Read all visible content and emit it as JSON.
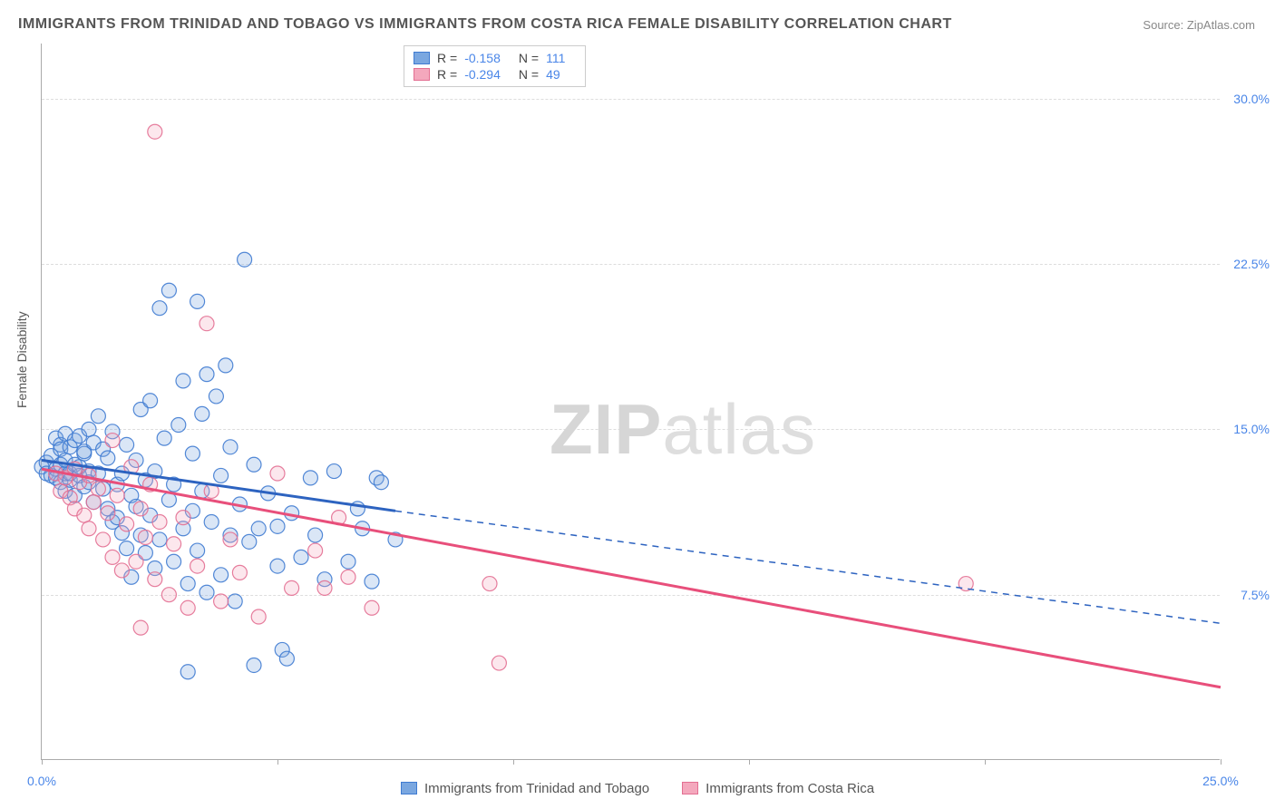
{
  "title": "IMMIGRANTS FROM TRINIDAD AND TOBAGO VS IMMIGRANTS FROM COSTA RICA FEMALE DISABILITY CORRELATION CHART",
  "source": {
    "label": "Source:",
    "site": "ZipAtlas.com"
  },
  "ylabel": "Female Disability",
  "watermark": {
    "part1": "ZIP",
    "part2": "atlas"
  },
  "chart": {
    "type": "scatter",
    "xrange": [
      0,
      25
    ],
    "yrange": [
      0,
      32.5
    ],
    "yticks": [
      {
        "v": 7.5,
        "label": "7.5%"
      },
      {
        "v": 15.0,
        "label": "15.0%"
      },
      {
        "v": 22.5,
        "label": "22.5%"
      },
      {
        "v": 30.0,
        "label": "30.0%"
      }
    ],
    "xticks": [
      {
        "v": 0,
        "label": "0.0%"
      },
      {
        "v": 5,
        "label": null
      },
      {
        "v": 10,
        "label": null
      },
      {
        "v": 15,
        "label": null
      },
      {
        "v": 20,
        "label": null
      },
      {
        "v": 25,
        "label": "25.0%"
      }
    ],
    "grid_color": "#dddddd",
    "axis_color": "#aaaaaa",
    "background": "#ffffff",
    "point_radius": 8,
    "series": [
      {
        "key": "trinidad",
        "name": "Immigrants from Trinidad and Tobago",
        "color_fill": "#7aa7e0",
        "color_stroke": "#3f7bd1",
        "R": "-0.158",
        "N": "111",
        "trend": {
          "solid": {
            "x1": 0,
            "y1": 13.6,
            "x2": 7.5,
            "y2": 11.3
          },
          "dashed": {
            "x1": 7.5,
            "y1": 11.3,
            "x2": 25,
            "y2": 6.2
          },
          "stroke": "#2d63c0",
          "width": 3
        },
        "points": [
          [
            0.0,
            13.3
          ],
          [
            0.1,
            13.5
          ],
          [
            0.1,
            13.0
          ],
          [
            0.2,
            12.9
          ],
          [
            0.2,
            13.8
          ],
          [
            0.3,
            13.2
          ],
          [
            0.3,
            12.8
          ],
          [
            0.3,
            14.6
          ],
          [
            0.4,
            14.3
          ],
          [
            0.4,
            13.4
          ],
          [
            0.4,
            12.6
          ],
          [
            0.4,
            14.1
          ],
          [
            0.5,
            13.0
          ],
          [
            0.5,
            14.8
          ],
          [
            0.5,
            12.2
          ],
          [
            0.5,
            13.6
          ],
          [
            0.6,
            12.7
          ],
          [
            0.6,
            14.2
          ],
          [
            0.6,
            13.0
          ],
          [
            0.7,
            13.4
          ],
          [
            0.7,
            14.5
          ],
          [
            0.7,
            12.0
          ],
          [
            0.8,
            12.9
          ],
          [
            0.8,
            14.7
          ],
          [
            0.8,
            13.3
          ],
          [
            0.9,
            13.9
          ],
          [
            0.9,
            12.4
          ],
          [
            0.9,
            14.0
          ],
          [
            1.0,
            13.1
          ],
          [
            1.0,
            15.0
          ],
          [
            1.0,
            12.6
          ],
          [
            1.1,
            14.4
          ],
          [
            1.1,
            11.7
          ],
          [
            1.2,
            13.0
          ],
          [
            1.2,
            15.6
          ],
          [
            1.3,
            12.3
          ],
          [
            1.3,
            14.1
          ],
          [
            1.4,
            11.4
          ],
          [
            1.4,
            13.7
          ],
          [
            1.5,
            10.8
          ],
          [
            1.5,
            14.9
          ],
          [
            1.6,
            11.0
          ],
          [
            1.6,
            12.5
          ],
          [
            1.7,
            10.3
          ],
          [
            1.7,
            13.0
          ],
          [
            1.8,
            14.3
          ],
          [
            1.8,
            9.6
          ],
          [
            1.9,
            12.0
          ],
          [
            1.9,
            8.3
          ],
          [
            2.0,
            11.5
          ],
          [
            2.0,
            13.6
          ],
          [
            2.1,
            10.2
          ],
          [
            2.1,
            15.9
          ],
          [
            2.2,
            9.4
          ],
          [
            2.2,
            12.7
          ],
          [
            2.3,
            11.1
          ],
          [
            2.3,
            16.3
          ],
          [
            2.4,
            8.7
          ],
          [
            2.4,
            13.1
          ],
          [
            2.5,
            20.5
          ],
          [
            2.5,
            10.0
          ],
          [
            2.6,
            14.6
          ],
          [
            2.7,
            11.8
          ],
          [
            2.7,
            21.3
          ],
          [
            2.8,
            9.0
          ],
          [
            2.8,
            12.5
          ],
          [
            2.9,
            15.2
          ],
          [
            3.0,
            10.5
          ],
          [
            3.0,
            17.2
          ],
          [
            3.1,
            8.0
          ],
          [
            3.1,
            4.0
          ],
          [
            3.2,
            11.3
          ],
          [
            3.2,
            13.9
          ],
          [
            3.3,
            9.5
          ],
          [
            3.3,
            20.8
          ],
          [
            3.4,
            12.2
          ],
          [
            3.4,
            15.7
          ],
          [
            3.5,
            7.6
          ],
          [
            3.5,
            17.5
          ],
          [
            3.6,
            10.8
          ],
          [
            3.7,
            16.5
          ],
          [
            3.8,
            8.4
          ],
          [
            3.8,
            12.9
          ],
          [
            3.9,
            17.9
          ],
          [
            4.0,
            10.2
          ],
          [
            4.0,
            14.2
          ],
          [
            4.1,
            7.2
          ],
          [
            4.2,
            11.6
          ],
          [
            4.3,
            22.7
          ],
          [
            4.4,
            9.9
          ],
          [
            4.5,
            13.4
          ],
          [
            4.5,
            4.3
          ],
          [
            4.6,
            10.5
          ],
          [
            4.8,
            12.1
          ],
          [
            5.0,
            8.8
          ],
          [
            5.0,
            10.6
          ],
          [
            5.1,
            5.0
          ],
          [
            5.2,
            4.6
          ],
          [
            5.3,
            11.2
          ],
          [
            5.5,
            9.2
          ],
          [
            5.7,
            12.8
          ],
          [
            5.8,
            10.2
          ],
          [
            6.0,
            8.2
          ],
          [
            6.2,
            13.1
          ],
          [
            6.5,
            9.0
          ],
          [
            6.7,
            11.4
          ],
          [
            6.8,
            10.5
          ],
          [
            7.0,
            8.1
          ],
          [
            7.1,
            12.8
          ],
          [
            7.2,
            12.6
          ],
          [
            7.5,
            10.0
          ]
        ]
      },
      {
        "key": "costarica",
        "name": "Immigrants from Costa Rica",
        "color_fill": "#f4a8bd",
        "color_stroke": "#e36f92",
        "R": "-0.294",
        "N": "49",
        "trend": {
          "solid": {
            "x1": 0,
            "y1": 13.2,
            "x2": 25,
            "y2": 3.3
          },
          "dashed": null,
          "stroke": "#e84f7b",
          "width": 3
        },
        "points": [
          [
            0.3,
            13.0
          ],
          [
            0.4,
            12.2
          ],
          [
            0.5,
            12.8
          ],
          [
            0.6,
            11.9
          ],
          [
            0.7,
            13.2
          ],
          [
            0.7,
            11.4
          ],
          [
            0.8,
            12.6
          ],
          [
            0.9,
            11.1
          ],
          [
            1.0,
            12.9
          ],
          [
            1.0,
            10.5
          ],
          [
            1.1,
            11.7
          ],
          [
            1.2,
            12.3
          ],
          [
            1.3,
            10.0
          ],
          [
            1.4,
            11.2
          ],
          [
            1.5,
            14.5
          ],
          [
            1.5,
            9.2
          ],
          [
            1.6,
            12.0
          ],
          [
            1.7,
            8.6
          ],
          [
            1.8,
            10.7
          ],
          [
            1.9,
            13.3
          ],
          [
            2.0,
            9.0
          ],
          [
            2.1,
            11.4
          ],
          [
            2.1,
            6.0
          ],
          [
            2.2,
            10.1
          ],
          [
            2.3,
            12.5
          ],
          [
            2.4,
            8.2
          ],
          [
            2.4,
            28.5
          ],
          [
            2.5,
            10.8
          ],
          [
            2.7,
            7.5
          ],
          [
            2.8,
            9.8
          ],
          [
            3.0,
            11.0
          ],
          [
            3.1,
            6.9
          ],
          [
            3.3,
            8.8
          ],
          [
            3.5,
            19.8
          ],
          [
            3.6,
            12.2
          ],
          [
            3.8,
            7.2
          ],
          [
            4.0,
            10.0
          ],
          [
            4.2,
            8.5
          ],
          [
            4.6,
            6.5
          ],
          [
            5.0,
            13.0
          ],
          [
            5.3,
            7.8
          ],
          [
            5.8,
            9.5
          ],
          [
            6.0,
            7.8
          ],
          [
            6.3,
            11.0
          ],
          [
            6.5,
            8.3
          ],
          [
            7.0,
            6.9
          ],
          [
            9.5,
            8.0
          ],
          [
            9.7,
            4.4
          ],
          [
            19.6,
            8.0
          ]
        ]
      }
    ]
  }
}
